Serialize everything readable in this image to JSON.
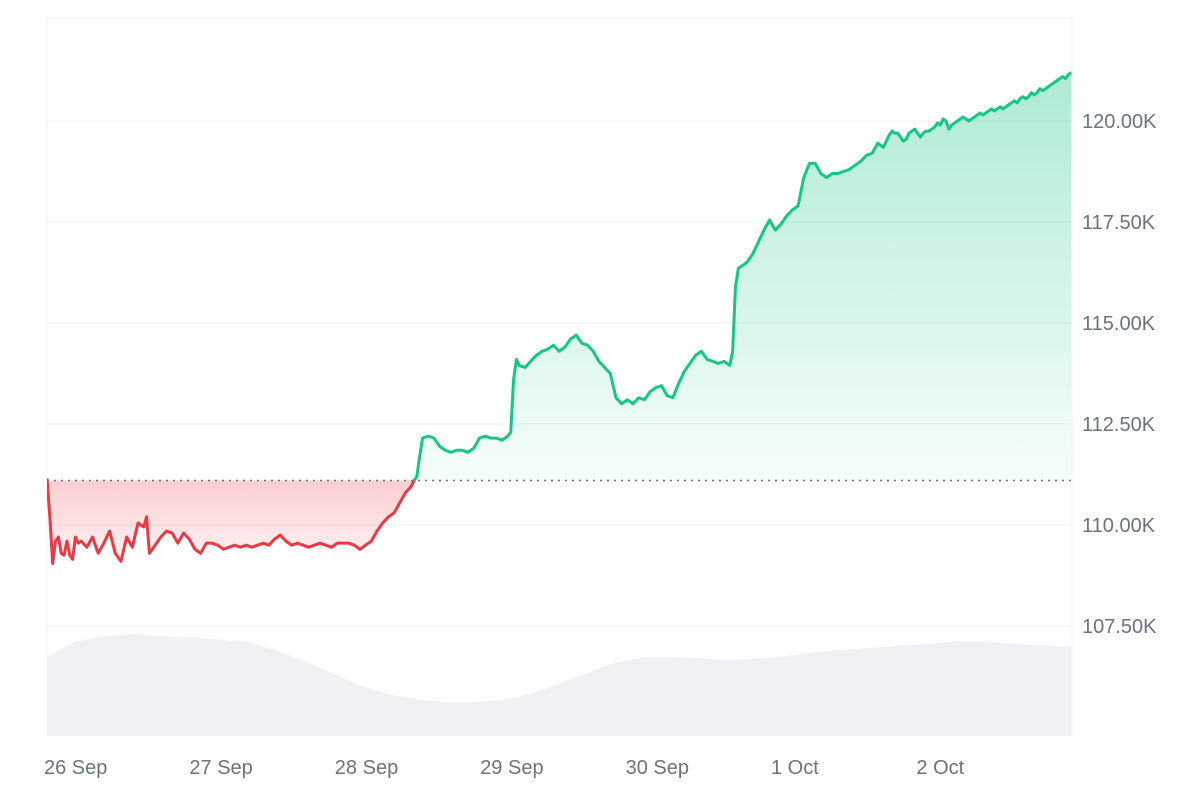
{
  "chart_data": {
    "type": "area",
    "title": "",
    "xlabel": "",
    "ylabel": "",
    "baseline": 111100,
    "ylim": [
      105000,
      122500
    ],
    "x_ticks": [
      "26 Sep",
      "27 Sep",
      "28 Sep",
      "29 Sep",
      "30 Sep",
      "1 Oct",
      "2 Oct"
    ],
    "y_ticks": [
      107500,
      110000,
      112500,
      115000,
      117500,
      120000
    ],
    "y_tick_labels": [
      "107.50K",
      "110.00K",
      "112.50K",
      "115.00K",
      "117.50K",
      "120.00K"
    ],
    "grid": true,
    "colors": {
      "up": "#16c784",
      "down": "#ea3943",
      "up_fill": "#16c784",
      "down_fill": "#ea3943",
      "volume": "#eff1f4",
      "grid": "#eef0f3",
      "baseline_dots": "#6b7280"
    },
    "series": [
      {
        "values": [
          [
            0,
            111150
          ],
          [
            0.05,
            110200
          ],
          [
            0.1,
            109050
          ],
          [
            0.15,
            109600
          ],
          [
            0.2,
            109700
          ],
          [
            0.25,
            109300
          ],
          [
            0.3,
            109250
          ],
          [
            0.35,
            109600
          ],
          [
            0.4,
            109250
          ],
          [
            0.45,
            109150
          ],
          [
            0.5,
            109700
          ],
          [
            0.55,
            109550
          ],
          [
            0.6,
            109600
          ],
          [
            0.7,
            109450
          ],
          [
            0.8,
            109700
          ],
          [
            0.9,
            109300
          ],
          [
            1.0,
            109550
          ],
          [
            1.1,
            109850
          ],
          [
            1.2,
            109300
          ],
          [
            1.3,
            109100
          ],
          [
            1.4,
            109700
          ],
          [
            1.5,
            109450
          ],
          [
            1.6,
            110050
          ],
          [
            1.7,
            109950
          ],
          [
            1.75,
            110200
          ],
          [
            1.8,
            109300
          ],
          [
            1.9,
            109500
          ],
          [
            2.0,
            109700
          ],
          [
            2.1,
            109850
          ],
          [
            2.2,
            109800
          ],
          [
            2.3,
            109550
          ],
          [
            2.4,
            109800
          ],
          [
            2.5,
            109650
          ],
          [
            2.6,
            109400
          ],
          [
            2.7,
            109300
          ],
          [
            2.8,
            109550
          ],
          [
            2.9,
            109550
          ],
          [
            3.0,
            109500
          ],
          [
            3.1,
            109400
          ],
          [
            3.2,
            109450
          ],
          [
            3.3,
            109500
          ],
          [
            3.4,
            109450
          ],
          [
            3.5,
            109500
          ],
          [
            3.6,
            109450
          ],
          [
            3.7,
            109500
          ],
          [
            3.8,
            109550
          ],
          [
            3.9,
            109500
          ],
          [
            4.0,
            109650
          ],
          [
            4.1,
            109750
          ],
          [
            4.2,
            109600
          ],
          [
            4.3,
            109500
          ],
          [
            4.4,
            109550
          ],
          [
            4.5,
            109500
          ],
          [
            4.6,
            109450
          ],
          [
            4.7,
            109500
          ],
          [
            4.8,
            109550
          ],
          [
            4.9,
            109500
          ],
          [
            5.0,
            109450
          ],
          [
            5.1,
            109550
          ],
          [
            5.2,
            109550
          ],
          [
            5.3,
            109550
          ],
          [
            5.4,
            109500
          ],
          [
            5.5,
            109400
          ],
          [
            5.6,
            109500
          ],
          [
            5.7,
            109600
          ],
          [
            5.8,
            109850
          ],
          [
            5.9,
            110050
          ],
          [
            6.0,
            110200
          ],
          [
            6.1,
            110300
          ],
          [
            6.2,
            110550
          ],
          [
            6.3,
            110800
          ],
          [
            6.4,
            110950
          ],
          [
            6.45,
            111100
          ]
        ]
      },
      {
        "values": [
          [
            6.45,
            111100
          ],
          [
            6.5,
            111200
          ],
          [
            6.55,
            111700
          ],
          [
            6.6,
            112150
          ],
          [
            6.7,
            112200
          ],
          [
            6.8,
            112150
          ],
          [
            6.9,
            111950
          ],
          [
            7.0,
            111850
          ],
          [
            7.1,
            111800
          ],
          [
            7.2,
            111850
          ],
          [
            7.3,
            111850
          ],
          [
            7.4,
            111800
          ],
          [
            7.5,
            111900
          ],
          [
            7.6,
            112150
          ],
          [
            7.7,
            112200
          ],
          [
            7.8,
            112150
          ],
          [
            7.9,
            112150
          ],
          [
            8.0,
            112100
          ],
          [
            8.1,
            112200
          ],
          [
            8.15,
            112300
          ],
          [
            8.2,
            113600
          ],
          [
            8.25,
            114100
          ],
          [
            8.3,
            113950
          ],
          [
            8.4,
            113900
          ],
          [
            8.5,
            114050
          ],
          [
            8.6,
            114200
          ],
          [
            8.7,
            114300
          ],
          [
            8.8,
            114350
          ],
          [
            8.9,
            114450
          ],
          [
            9.0,
            114300
          ],
          [
            9.1,
            114400
          ],
          [
            9.2,
            114600
          ],
          [
            9.3,
            114700
          ],
          [
            9.4,
            114500
          ],
          [
            9.5,
            114450
          ],
          [
            9.6,
            114300
          ],
          [
            9.7,
            114050
          ],
          [
            9.8,
            113900
          ],
          [
            9.9,
            113750
          ],
          [
            10.0,
            113150
          ],
          [
            10.1,
            113000
          ],
          [
            10.2,
            113100
          ],
          [
            10.3,
            113000
          ],
          [
            10.4,
            113150
          ],
          [
            10.5,
            113100
          ],
          [
            10.6,
            113300
          ],
          [
            10.7,
            113400
          ],
          [
            10.8,
            113450
          ],
          [
            10.9,
            113200
          ],
          [
            11.0,
            113150
          ],
          [
            11.1,
            113500
          ],
          [
            11.2,
            113800
          ],
          [
            11.3,
            114000
          ],
          [
            11.4,
            114200
          ],
          [
            11.5,
            114300
          ],
          [
            11.6,
            114100
          ],
          [
            11.7,
            114050
          ],
          [
            11.8,
            114000
          ],
          [
            11.9,
            114050
          ],
          [
            12.0,
            113950
          ],
          [
            12.05,
            114300
          ],
          [
            12.1,
            115900
          ],
          [
            12.15,
            116350
          ],
          [
            12.2,
            116400
          ],
          [
            12.3,
            116500
          ],
          [
            12.4,
            116700
          ],
          [
            12.5,
            117000
          ],
          [
            12.6,
            117300
          ],
          [
            12.7,
            117550
          ],
          [
            12.8,
            117300
          ],
          [
            12.9,
            117450
          ],
          [
            13.0,
            117650
          ],
          [
            13.1,
            117800
          ],
          [
            13.2,
            117900
          ],
          [
            13.3,
            118600
          ],
          [
            13.4,
            118950
          ],
          [
            13.5,
            118950
          ],
          [
            13.6,
            118700
          ],
          [
            13.7,
            118600
          ],
          [
            13.8,
            118700
          ],
          [
            13.9,
            118700
          ],
          [
            14.0,
            118750
          ],
          [
            14.1,
            118800
          ],
          [
            14.2,
            118900
          ],
          [
            14.3,
            119000
          ],
          [
            14.4,
            119150
          ],
          [
            14.5,
            119200
          ],
          [
            14.6,
            119450
          ],
          [
            14.7,
            119350
          ],
          [
            14.8,
            119650
          ],
          [
            14.85,
            119750
          ],
          [
            14.9,
            119700
          ],
          [
            14.95,
            119700
          ],
          [
            15.0,
            119600
          ],
          [
            15.05,
            119500
          ],
          [
            15.1,
            119550
          ],
          [
            15.15,
            119700
          ],
          [
            15.2,
            119750
          ],
          [
            15.25,
            119800
          ],
          [
            15.3,
            119700
          ],
          [
            15.35,
            119600
          ],
          [
            15.4,
            119700
          ],
          [
            15.45,
            119750
          ],
          [
            15.5,
            119750
          ],
          [
            15.55,
            119800
          ],
          [
            15.6,
            119850
          ],
          [
            15.65,
            119950
          ],
          [
            15.7,
            119900
          ],
          [
            15.75,
            120050
          ],
          [
            15.8,
            120000
          ],
          [
            15.85,
            119800
          ],
          [
            15.9,
            119900
          ],
          [
            15.95,
            119950
          ],
          [
            16.0,
            120000
          ],
          [
            16.05,
            120050
          ],
          [
            16.1,
            120100
          ],
          [
            16.15,
            120050
          ],
          [
            16.2,
            120000
          ],
          [
            16.25,
            120050
          ],
          [
            16.3,
            120100
          ],
          [
            16.35,
            120150
          ],
          [
            16.4,
            120200
          ],
          [
            16.45,
            120150
          ],
          [
            16.5,
            120200
          ],
          [
            16.55,
            120250
          ],
          [
            16.6,
            120300
          ],
          [
            16.65,
            120250
          ],
          [
            16.7,
            120300
          ],
          [
            16.75,
            120350
          ],
          [
            16.8,
            120300
          ],
          [
            16.85,
            120350
          ],
          [
            16.9,
            120400
          ],
          [
            16.95,
            120450
          ],
          [
            17.0,
            120500
          ],
          [
            17.05,
            120450
          ],
          [
            17.1,
            120550
          ],
          [
            17.15,
            120600
          ],
          [
            17.2,
            120550
          ],
          [
            17.25,
            120600
          ],
          [
            17.3,
            120700
          ],
          [
            17.35,
            120650
          ],
          [
            17.4,
            120700
          ],
          [
            17.45,
            120800
          ],
          [
            17.5,
            120750
          ],
          [
            17.55,
            120800
          ],
          [
            17.6,
            120850
          ],
          [
            17.65,
            120900
          ],
          [
            17.7,
            120950
          ],
          [
            17.75,
            121000
          ],
          [
            17.8,
            121050
          ],
          [
            17.85,
            121100
          ],
          [
            17.9,
            121050
          ],
          [
            17.95,
            121150
          ],
          [
            18.0,
            121200
          ]
        ]
      }
    ],
    "volume": [
      [
        0,
        0.75
      ],
      [
        0.5,
        0.9
      ],
      [
        1.0,
        0.95
      ],
      [
        1.5,
        0.97
      ],
      [
        2.0,
        0.95
      ],
      [
        2.5,
        0.94
      ],
      [
        3.0,
        0.92
      ],
      [
        3.5,
        0.9
      ],
      [
        4.0,
        0.82
      ],
      [
        4.5,
        0.72
      ],
      [
        5.0,
        0.6
      ],
      [
        5.5,
        0.48
      ],
      [
        6.0,
        0.4
      ],
      [
        6.5,
        0.35
      ],
      [
        7.0,
        0.32
      ],
      [
        7.5,
        0.32
      ],
      [
        8.0,
        0.34
      ],
      [
        8.5,
        0.4
      ],
      [
        9.0,
        0.5
      ],
      [
        9.5,
        0.6
      ],
      [
        10.0,
        0.7
      ],
      [
        10.5,
        0.75
      ],
      [
        11.0,
        0.75
      ],
      [
        11.5,
        0.74
      ],
      [
        12.0,
        0.72
      ],
      [
        12.5,
        0.74
      ],
      [
        13.0,
        0.76
      ],
      [
        13.5,
        0.8
      ],
      [
        14.0,
        0.82
      ],
      [
        14.5,
        0.84
      ],
      [
        15.0,
        0.86
      ],
      [
        15.5,
        0.88
      ],
      [
        16.0,
        0.9
      ],
      [
        16.5,
        0.9
      ],
      [
        17.0,
        0.88
      ],
      [
        17.5,
        0.86
      ],
      [
        18.0,
        0.85
      ]
    ]
  }
}
